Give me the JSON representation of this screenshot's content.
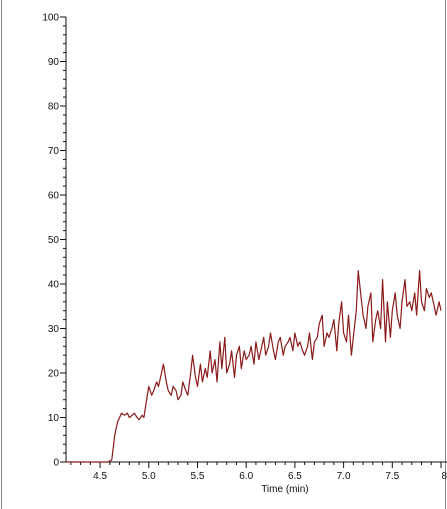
{
  "chart_data": {
    "type": "line",
    "title": "",
    "xlabel": "Time (min)",
    "ylabel": "",
    "xlim": [
      4.15,
      8.0
    ],
    "ylim": [
      0,
      100
    ],
    "x_ticks": [
      4.5,
      5.0,
      5.5,
      6.0,
      6.5,
      7.0,
      7.5,
      8.0
    ],
    "x_tick_labels": [
      "4.5",
      "5.0",
      "5.5",
      "6.0",
      "6.5",
      "7.0",
      "7.5",
      "8"
    ],
    "y_ticks": [
      0,
      10,
      20,
      30,
      40,
      50,
      60,
      70,
      80,
      90,
      100
    ],
    "y_tick_labels": [
      "0",
      "10",
      "20",
      "30",
      "40",
      "50",
      "60",
      "70",
      "80",
      "90",
      "100"
    ],
    "grid": false,
    "legend": "none",
    "line_color": "#8B1A1A",
    "series": [
      {
        "x": [
          4.15,
          4.4,
          4.55,
          4.58,
          4.62,
          4.65,
          4.68,
          4.7,
          4.72,
          4.75,
          4.78,
          4.8,
          4.83,
          4.85,
          4.88,
          4.9,
          4.93,
          4.95,
          4.97,
          5.0,
          5.03,
          5.05,
          5.08,
          5.1,
          5.13,
          5.15,
          5.18,
          5.2,
          5.23,
          5.25,
          5.28,
          5.3,
          5.33,
          5.35,
          5.38,
          5.4,
          5.43,
          5.45,
          5.48,
          5.5,
          5.53,
          5.55,
          5.58,
          5.6,
          5.63,
          5.65,
          5.68,
          5.7,
          5.73,
          5.75,
          5.78,
          5.8,
          5.83,
          5.85,
          5.88,
          5.9,
          5.93,
          5.95,
          5.98,
          6.0,
          6.03,
          6.05,
          6.08,
          6.1,
          6.13,
          6.15,
          6.18,
          6.2,
          6.23,
          6.25,
          6.28,
          6.3,
          6.33,
          6.35,
          6.38,
          6.4,
          6.43,
          6.45,
          6.48,
          6.5,
          6.53,
          6.55,
          6.58,
          6.6,
          6.63,
          6.65,
          6.68,
          6.7,
          6.73,
          6.75,
          6.78,
          6.8,
          6.83,
          6.85,
          6.88,
          6.9,
          6.93,
          6.95,
          6.98,
          7.0,
          7.03,
          7.05,
          7.08,
          7.1,
          7.13,
          7.15,
          7.18,
          7.2,
          7.23,
          7.25,
          7.28,
          7.3,
          7.33,
          7.35,
          7.38,
          7.4,
          7.43,
          7.45,
          7.48,
          7.5,
          7.53,
          7.55,
          7.58,
          7.6,
          7.63,
          7.65,
          7.68,
          7.7,
          7.73,
          7.75,
          7.78,
          7.8,
          7.83,
          7.85,
          7.88,
          7.9,
          7.93,
          7.95,
          7.98,
          8.0
        ],
        "y": [
          0,
          0,
          0,
          0,
          0.5,
          6,
          9,
          10,
          11,
          10.5,
          11,
          10,
          10.5,
          11,
          10,
          9.5,
          10.5,
          10,
          13,
          17,
          15,
          16,
          18,
          17,
          20,
          22,
          18,
          16,
          15,
          17,
          16,
          14,
          15,
          18,
          16,
          15,
          20,
          24,
          19,
          17,
          22,
          18,
          21,
          19,
          25,
          20,
          23,
          18,
          27,
          21,
          28,
          20,
          22,
          25,
          19,
          24,
          26,
          21,
          25,
          23,
          24,
          26,
          22,
          27,
          23,
          25,
          28,
          24,
          26,
          29,
          25,
          23,
          27,
          28,
          24,
          26,
          27,
          28,
          25,
          29,
          26,
          27,
          25,
          24,
          26,
          29,
          23,
          27,
          28,
          31,
          33,
          26,
          29,
          28,
          30,
          32,
          25,
          31,
          36,
          29,
          27,
          33,
          24,
          28,
          34,
          43,
          37,
          33,
          30,
          35,
          38,
          27,
          32,
          34,
          30,
          41,
          27,
          36,
          28,
          34,
          38,
          33,
          30,
          36,
          41,
          35,
          36,
          34,
          38,
          33,
          43,
          36,
          34,
          39,
          37,
          38,
          35,
          33,
          36,
          34
        ]
      }
    ]
  }
}
